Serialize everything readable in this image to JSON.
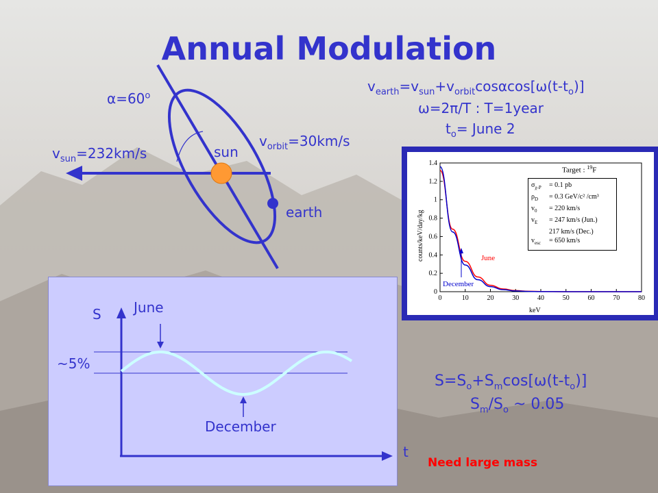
{
  "title": "Annual Modulation",
  "orbit": {
    "alpha_label": "=60",
    "alpha_symbol": "α",
    "alpha_sup": "o",
    "vsun_v": "v",
    "vsun_sub": "sun",
    "vsun_rest": "=232km/s",
    "vorbit_v": "v",
    "vorbit_sub": "orbit",
    "vorbit_rest": "=30km/s",
    "sun_label": "sun",
    "earth_label": "earth"
  },
  "formula1": {
    "v": "v",
    "sub1": "earth",
    "p1": "=v",
    "sub2": "sun",
    "p2": "+v",
    "sub3": "orbit",
    "p3": "cosαcos[ω(t-t",
    "sub4": "o",
    "p4": ")]"
  },
  "formula2": {
    "text": "ω=2π/T  : T=1year"
  },
  "formula3": {
    "t": "t",
    "sub": "o",
    "rest": "= June 2"
  },
  "modulation": {
    "s_label": "S",
    "t_label": "t",
    "june_label": "June",
    "december_label": "December",
    "pct_label": "~5%"
  },
  "formula4": {
    "p1": "S=S",
    "s1": "o",
    "p2": "+S",
    "s2": "m",
    "p3": "cos[ω(t-t",
    "s3": "o",
    "p4": ")]"
  },
  "formula5": {
    "p1": "S",
    "s1": "m",
    "p2": "/S",
    "s2": "o",
    "p3": " ~ 0.05"
  },
  "note": "Need large mass",
  "spectrum": {
    "target_label": "Target : ",
    "target_sup": "19",
    "target_el": "F",
    "ylabel": "counts/keV/day/kg",
    "xlabel": "keV",
    "june_label": "June",
    "december_label": "December",
    "legend": [
      {
        "sym": "σ",
        "sub": "χ-P",
        "val": "= 0.1 pb"
      },
      {
        "sym": "ρ",
        "sub": "D",
        "val": "= 0.3 GeV/c² /cm³"
      },
      {
        "sym": "v",
        "sub": "0",
        "val": "= 220 km/s"
      },
      {
        "sym": "v",
        "sub": "E",
        "val": "= 247 km/s (Jun.)"
      },
      {
        "sym": "",
        "sub": "",
        "val": "217 km/s (Dec.)"
      },
      {
        "sym": "v",
        "sub": "esc",
        "val": "= 650 km/s"
      }
    ],
    "colors": {
      "june": "#ff0000",
      "december": "#0000cc"
    }
  },
  "chart_data": {
    "type": "line",
    "xlabel": "keV",
    "ylabel": "counts/keV/day/kg",
    "xlim": [
      0,
      80
    ],
    "ylim": [
      0,
      1.4
    ],
    "xticks": [
      0,
      10,
      20,
      30,
      40,
      50,
      60,
      70,
      80
    ],
    "yticks": [
      0,
      0.2,
      0.4,
      0.6,
      0.8,
      1,
      1.2,
      1.4
    ],
    "series": [
      {
        "name": "June",
        "x": [
          0,
          5,
          10,
          15,
          20,
          25,
          30,
          35,
          40,
          50,
          60,
          70,
          80
        ],
        "values": [
          1.32,
          0.68,
          0.33,
          0.16,
          0.07,
          0.03,
          0.012,
          0.005,
          0.002,
          0,
          0,
          0,
          0
        ]
      },
      {
        "name": "December",
        "x": [
          0,
          5,
          10,
          15,
          20,
          25,
          30,
          35,
          40,
          50,
          60,
          70,
          80
        ],
        "values": [
          1.36,
          0.65,
          0.29,
          0.13,
          0.055,
          0.022,
          0.008,
          0.003,
          0.001,
          0,
          0,
          0,
          0
        ]
      }
    ]
  }
}
